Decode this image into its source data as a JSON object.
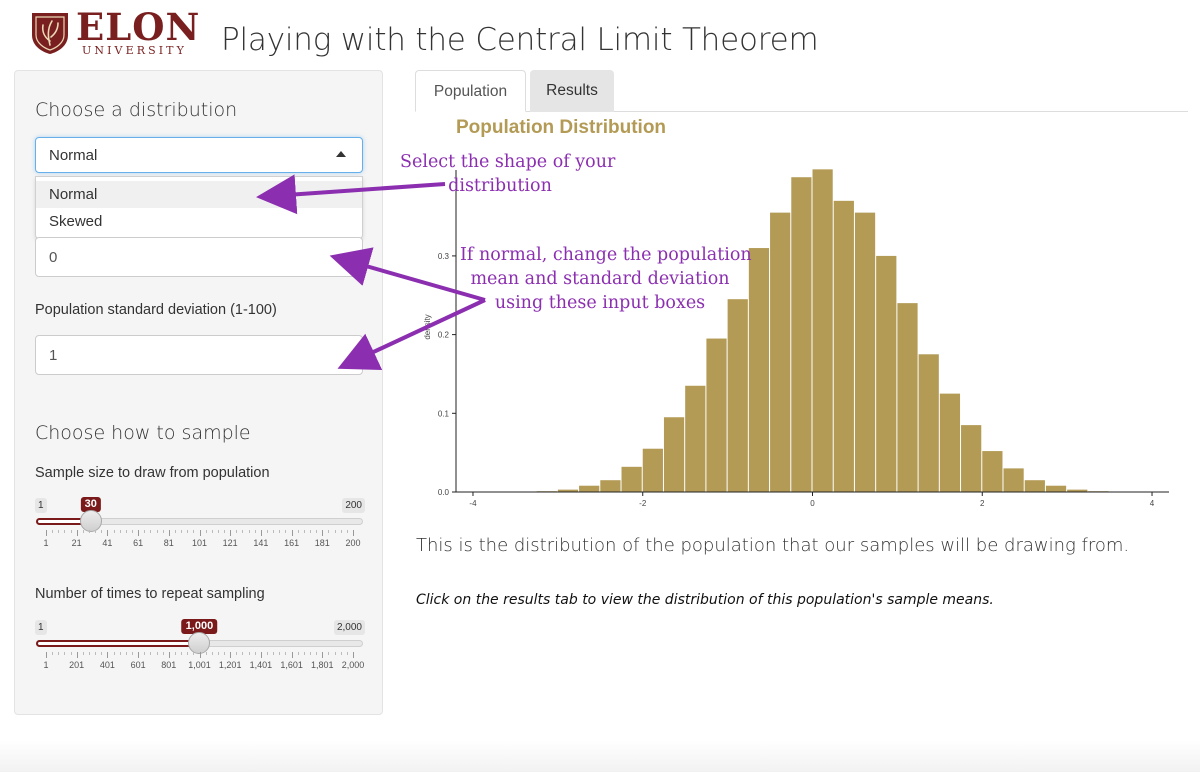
{
  "header": {
    "logo_word": "ELON",
    "logo_sub": "UNIVERSITY",
    "title": "Playing with the Central Limit Theorem",
    "brand_color": "#7a1f1f"
  },
  "sidebar": {
    "distribution_heading": "Choose a distribution",
    "distribution_select": {
      "value": "Normal",
      "options": [
        "Normal",
        "Skewed"
      ]
    },
    "mean_input_value": "0",
    "sd_label": "Population standard deviation (1-100)",
    "sd_input_value": "1",
    "sample_heading": "Choose how to sample",
    "sample_size": {
      "label": "Sample size to draw from population",
      "min_label": "1",
      "max_label": "200",
      "value_label": "30",
      "min": 1,
      "max": 200,
      "value": 30,
      "grid": [
        "1",
        "21",
        "41",
        "61",
        "81",
        "101",
        "121",
        "141",
        "161",
        "181",
        "200"
      ]
    },
    "repeats": {
      "label": "Number of times to repeat sampling",
      "min_label": "1",
      "max_label": "2,000",
      "value_label": "1,000",
      "min": 1,
      "max": 2000,
      "value": 1000,
      "grid": [
        "1",
        "201",
        "401",
        "601",
        "801",
        "1,001",
        "1,201",
        "1,401",
        "1,601",
        "1,801",
        "2,000"
      ]
    }
  },
  "tabs": [
    {
      "label": "Population",
      "active": true
    },
    {
      "label": "Results",
      "active": false
    }
  ],
  "chart_data": {
    "type": "bar",
    "title": "Population Distribution",
    "ylabel": "density",
    "xlim": [
      -4.2,
      4.2
    ],
    "ylim": [
      0,
      0.46
    ],
    "x_ticks": [
      -4,
      -2,
      0,
      2,
      4
    ],
    "y_ticks": [
      0.0,
      0.1,
      0.2,
      0.3
    ],
    "bin_width": 0.25,
    "bins_left_edges": [
      -3.25,
      -3.0,
      -2.75,
      -2.5,
      -2.25,
      -2.0,
      -1.75,
      -1.5,
      -1.25,
      -1.0,
      -0.75,
      -0.5,
      -0.25,
      0.0,
      0.25,
      0.5,
      0.75,
      1.0,
      1.25,
      1.5,
      1.75,
      2.0,
      2.25,
      2.5,
      2.75,
      3.0,
      3.25
    ],
    "values": [
      0.001,
      0.003,
      0.008,
      0.015,
      0.032,
      0.055,
      0.095,
      0.135,
      0.195,
      0.245,
      0.31,
      0.355,
      0.4,
      0.41,
      0.37,
      0.355,
      0.3,
      0.24,
      0.175,
      0.125,
      0.085,
      0.052,
      0.03,
      0.015,
      0.008,
      0.003,
      0.001
    ],
    "bar_color": "#b39b56"
  },
  "body": {
    "description": "This is the distribution of the population that our samples will be drawing from.",
    "note": "Click on the results tab to view the distribution of this population's sample means."
  },
  "annotations": {
    "select_hint_line1": "Select the shape of your",
    "select_hint_line2": "distribution",
    "inputs_hint_line1": "If normal, change the population",
    "inputs_hint_line2": "mean and standard deviation",
    "inputs_hint_line3": "using these input boxes",
    "color": "#8b2fb0"
  }
}
